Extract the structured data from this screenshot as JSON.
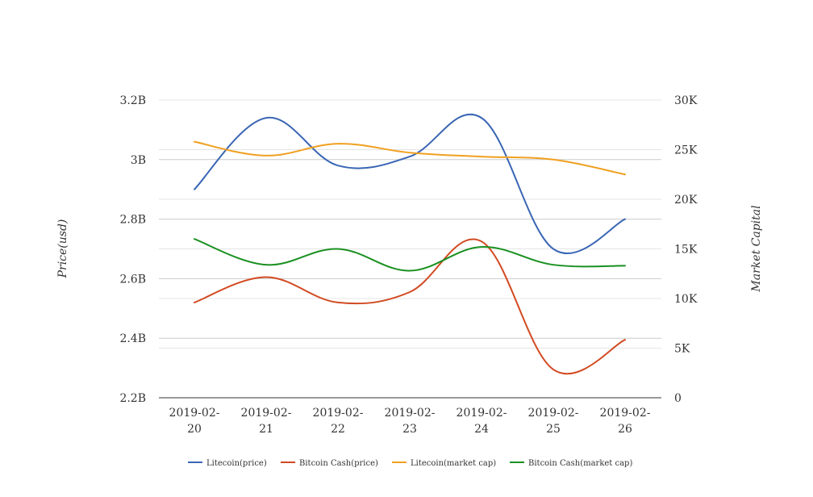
{
  "chart_data": {
    "type": "line",
    "categories": [
      "2019-02-20",
      "2019-02-21",
      "2019-02-22",
      "2019-02-23",
      "2019-02-24",
      "2019-02-25",
      "2019-02-26"
    ],
    "category_lines": [
      [
        "2019-02-",
        "20"
      ],
      [
        "2019-02-",
        "21"
      ],
      [
        "2019-02-",
        "22"
      ],
      [
        "2019-02-",
        "23"
      ],
      [
        "2019-02-",
        "24"
      ],
      [
        "2019-02-",
        "25"
      ],
      [
        "2019-02-",
        "26"
      ]
    ],
    "y_left": {
      "label": "Price(usd)",
      "range": [
        2.2,
        3.2
      ],
      "ticks": [
        2.2,
        2.4,
        2.6,
        2.8,
        3.0,
        3.2
      ],
      "tick_labels": [
        "2.2B",
        "2.4B",
        "2.6B",
        "2.8B",
        "3B",
        "3.2B"
      ]
    },
    "y_right": {
      "label": "Market Capital",
      "range": [
        0,
        30000
      ],
      "ticks": [
        0,
        5000,
        10000,
        15000,
        20000,
        25000,
        30000
      ],
      "tick_labels": [
        "0",
        "5K",
        "10K",
        "15K",
        "20K",
        "25K",
        "30K"
      ]
    },
    "grid": true,
    "legend_position": "bottom",
    "series": [
      {
        "name": "Litecoin(price)",
        "axis": "left",
        "color": "#3a66b4",
        "values": [
          2.9,
          3.14,
          2.98,
          3.01,
          3.14,
          2.7,
          2.8
        ]
      },
      {
        "name": "Bitcoin Cash(price)",
        "axis": "left",
        "color": "#d24a22",
        "values": [
          2.52,
          2.605,
          2.52,
          2.555,
          2.725,
          2.295,
          2.395
        ]
      },
      {
        "name": "Litecoin(market cap)",
        "axis": "right",
        "color": "#f0a020",
        "values": [
          25800,
          24400,
          25600,
          24700,
          24300,
          24000,
          22500
        ]
      },
      {
        "name": "Bitcoin Cash(market cap)",
        "axis": "right",
        "color": "#1a9020",
        "values": [
          16000,
          13400,
          15000,
          12800,
          15200,
          13400,
          13300
        ]
      }
    ]
  }
}
